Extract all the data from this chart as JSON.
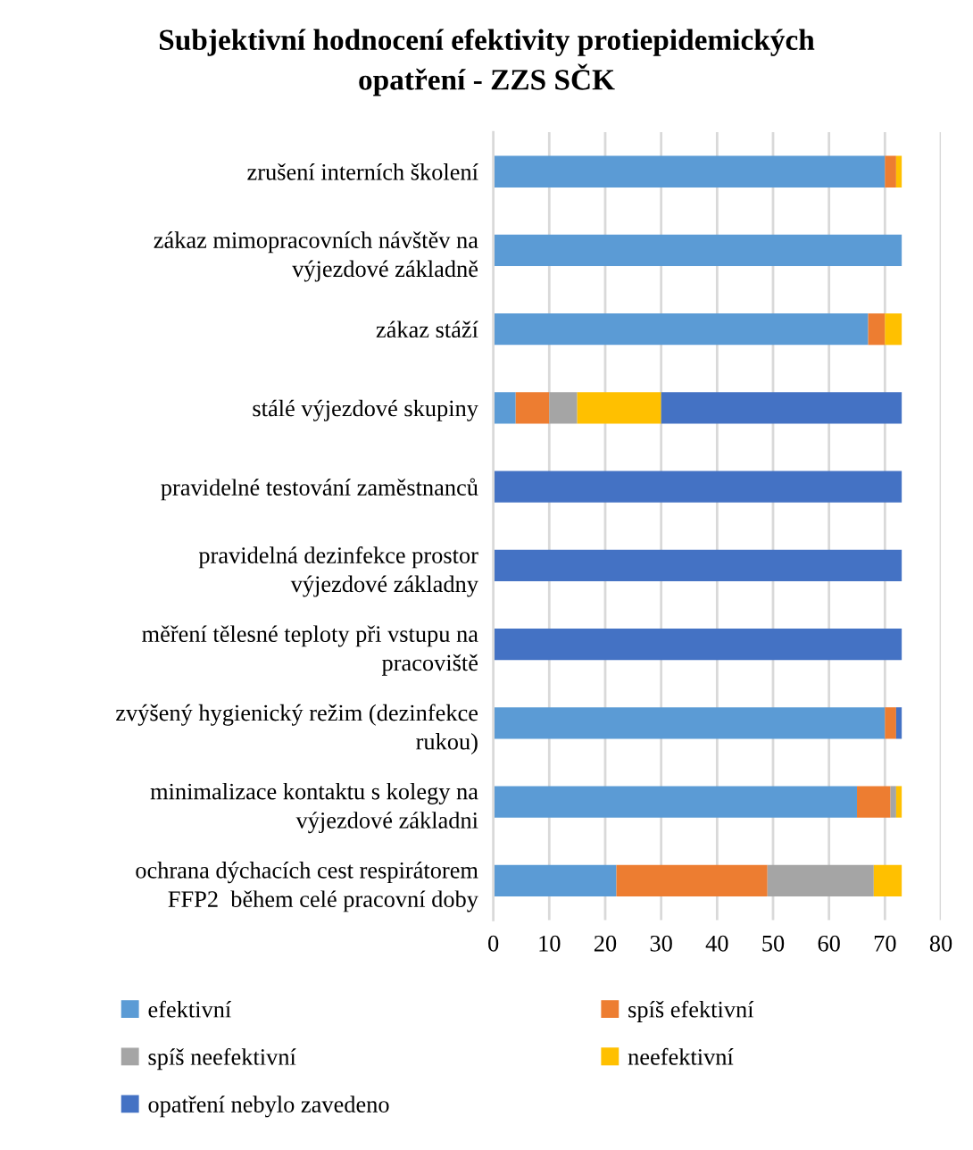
{
  "chart_data": {
    "type": "bar",
    "orientation": "horizontal",
    "stacked": true,
    "title": "Subjektivní hodnocení efektivity protiepidemických\nopatření - ZZS SČK",
    "categories": [
      "zrušení interních školení",
      "zákaz mimopracovních návštěv na\nvýjezdové základně",
      "zákaz stáží",
      "stálé výjezdové skupiny",
      "pravidelné testování zaměstnanců",
      "pravidelná dezinfekce prostor\nvýjezdové základny",
      "měření tělesné teploty při vstupu na\npracoviště",
      "zvýšený hygienický režim (dezinfekce\nrukou)",
      "minimalizace kontaktu s kolegy na\nvýjezdové základni",
      "ochrana dýchacích cest respirátorem\nFFP2  během celé pracovní doby"
    ],
    "series": [
      {
        "name": "efektivní",
        "color": "#5b9bd5",
        "values": [
          70,
          73,
          67,
          4,
          0,
          0,
          0,
          70,
          65,
          22
        ]
      },
      {
        "name": "spíš efektivní",
        "color": "#ed7d31",
        "values": [
          2,
          0,
          3,
          6,
          0,
          0,
          0,
          2,
          6,
          27
        ]
      },
      {
        "name": "spíš neefektivní",
        "color": "#a5a5a5",
        "values": [
          0,
          0,
          0,
          5,
          0,
          0,
          0,
          0,
          1,
          19
        ]
      },
      {
        "name": "neefektivní",
        "color": "#ffc000",
        "values": [
          1,
          0,
          3,
          15,
          0,
          0,
          0,
          0,
          1,
          5
        ]
      },
      {
        "name": "opatření nebylo zavedeno",
        "color": "#4472c4",
        "values": [
          0,
          0,
          0,
          43,
          73,
          73,
          73,
          1,
          0,
          0
        ]
      }
    ],
    "xlim": [
      0,
      80
    ],
    "xticks": [
      0,
      10,
      20,
      30,
      40,
      50,
      60,
      70,
      80
    ],
    "grid": "x",
    "legend": "bottom"
  }
}
